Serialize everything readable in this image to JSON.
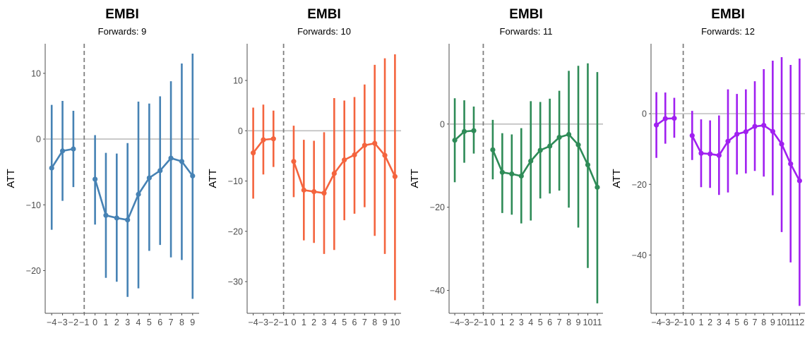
{
  "chart_data": [
    {
      "type": "line",
      "title": "EMBI",
      "subtitle": "Forwards: 9",
      "ylabel": "ATT",
      "xlabel": "",
      "color": "#4682b4",
      "ylim": [
        -26.5,
        14.5
      ],
      "yticks": [
        10,
        0,
        -10,
        -20
      ],
      "ytick_labels": [
        "10",
        "0",
        "−10",
        "−20"
      ],
      "xlim": [
        -4.6,
        9.6
      ],
      "xticks": [
        -4,
        -3,
        -2,
        -1,
        0,
        1,
        2,
        3,
        4,
        5,
        6,
        7,
        8,
        9
      ],
      "xtick_labels": [
        "−4",
        "−3",
        "−2",
        "−1",
        "0",
        "1",
        "2",
        "3",
        "4",
        "5",
        "6",
        "7",
        "8",
        "9"
      ],
      "pre": {
        "x": [
          -4,
          -3,
          -2
        ],
        "y": [
          -4.4,
          -1.8,
          -1.5
        ],
        "lo": [
          -13.8,
          -9.4,
          -7.3
        ],
        "hi": [
          5.2,
          5.8,
          4.3
        ]
      },
      "post": {
        "x": [
          0,
          1,
          2,
          3,
          4,
          5,
          6,
          7,
          8,
          9
        ],
        "y": [
          -6.1,
          -11.6,
          -12.0,
          -12.3,
          -8.4,
          -5.9,
          -4.8,
          -2.9,
          -3.4,
          -5.6
        ],
        "lo": [
          -13.0,
          -21.1,
          -21.7,
          -24.0,
          -22.7,
          -17.0,
          -16.1,
          -18.0,
          -18.4,
          -24.3
        ],
        "hi": [
          0.6,
          -2.1,
          -2.2,
          -0.6,
          5.7,
          5.4,
          6.5,
          8.8,
          11.5,
          13.0
        ]
      }
    },
    {
      "type": "line",
      "title": "EMBI",
      "subtitle": "Forwards: 10",
      "ylabel": "ATT",
      "xlabel": "",
      "color": "#f4643e",
      "ylim": [
        -36.3,
        17.3
      ],
      "yticks": [
        10,
        0,
        -10,
        -20,
        -30
      ],
      "ytick_labels": [
        "10",
        "0",
        "−10",
        "−20",
        "−30"
      ],
      "xlim": [
        -4.6,
        10.6
      ],
      "xticks": [
        -4,
        -3,
        -2,
        -1,
        0,
        1,
        2,
        3,
        4,
        5,
        6,
        7,
        8,
        9,
        10
      ],
      "xtick_labels": [
        "−4",
        "−3",
        "−2",
        "−1",
        "0",
        "1",
        "2",
        "3",
        "4",
        "5",
        "6",
        "7",
        "8",
        "9",
        "10"
      ],
      "pre": {
        "x": [
          -4,
          -3,
          -2
        ],
        "y": [
          -4.4,
          -1.8,
          -1.6
        ],
        "lo": [
          -13.5,
          -8.7,
          -7.2
        ],
        "hi": [
          4.6,
          5.2,
          4.0
        ]
      },
      "post": {
        "x": [
          0,
          1,
          2,
          3,
          4,
          5,
          6,
          7,
          8,
          9,
          10
        ],
        "y": [
          -6.1,
          -11.8,
          -12.1,
          -12.4,
          -8.5,
          -5.8,
          -4.8,
          -2.9,
          -2.5,
          -4.9,
          -9.1
        ],
        "lo": [
          -13.2,
          -21.8,
          -22.3,
          -24.5,
          -23.7,
          -17.8,
          -16.5,
          -15.2,
          -20.9,
          -24.5,
          -33.7
        ],
        "hi": [
          1.0,
          -1.8,
          -2.0,
          -0.3,
          6.5,
          6.0,
          6.7,
          9.2,
          13.1,
          14.4,
          15.2
        ]
      }
    },
    {
      "type": "line",
      "title": "EMBI",
      "subtitle": "Forwards: 11",
      "ylabel": "ATT",
      "xlabel": "",
      "color": "#2e8b57",
      "ylim": [
        -45.5,
        19.3
      ],
      "yticks": [
        0,
        -20,
        -40
      ],
      "ytick_labels": [
        "0",
        "−20",
        "−40"
      ],
      "xlim": [
        -4.6,
        11.6
      ],
      "xticks": [
        -4,
        -3,
        -2,
        -1,
        0,
        1,
        2,
        3,
        4,
        5,
        6,
        7,
        8,
        9,
        10,
        11
      ],
      "xtick_labels": [
        "−4",
        "−3",
        "−2",
        "−1",
        "0",
        "1",
        "2",
        "3",
        "4",
        "5",
        "6",
        "7",
        "8",
        "9",
        "10",
        "11"
      ],
      "pre": {
        "x": [
          -4,
          -3,
          -2
        ],
        "y": [
          -3.9,
          -1.8,
          -1.6
        ],
        "lo": [
          -14.0,
          -9.3,
          -7.1
        ],
        "hi": [
          6.2,
          5.7,
          4.2
        ]
      },
      "post": {
        "x": [
          0,
          1,
          2,
          3,
          4,
          5,
          6,
          7,
          8,
          9,
          10,
          11
        ],
        "y": [
          -6.2,
          -11.6,
          -12.0,
          -12.5,
          -8.9,
          -6.3,
          -5.3,
          -3.2,
          -2.5,
          -5.0,
          -9.8,
          -15.2
        ],
        "lo": [
          -13.3,
          -21.4,
          -21.8,
          -23.9,
          -23.2,
          -17.9,
          -16.7,
          -16.0,
          -20.1,
          -24.9,
          -34.6,
          -43.1
        ],
        "hi": [
          1.0,
          -2.2,
          -2.5,
          -1.0,
          5.5,
          5.3,
          6.1,
          8.0,
          12.8,
          14.0,
          14.6,
          12.5
        ]
      }
    },
    {
      "type": "line",
      "title": "EMBI",
      "subtitle": "Forwards: 12",
      "ylabel": "ATT",
      "xlabel": "",
      "color": "#a020f0",
      "ylim": [
        -56.5,
        19.8
      ],
      "yticks": [
        0,
        -20,
        -40
      ],
      "ytick_labels": [
        "0",
        "−20",
        "−40"
      ],
      "xlim": [
        -4.6,
        12.6
      ],
      "xticks": [
        -4,
        -3,
        -2,
        -1,
        0,
        1,
        2,
        3,
        4,
        5,
        6,
        7,
        8,
        9,
        10,
        11,
        12
      ],
      "xtick_labels": [
        "−4",
        "−3",
        "−2",
        "−1",
        "0",
        "1",
        "2",
        "3",
        "4",
        "5",
        "6",
        "7",
        "8",
        "9",
        "10",
        "11",
        "12"
      ],
      "pre": {
        "x": [
          -4,
          -3,
          -2
        ],
        "y": [
          -3.2,
          -1.4,
          -1.3
        ],
        "lo": [
          -12.5,
          -8.5,
          -6.8
        ],
        "hi": [
          6.1,
          6.0,
          4.5
        ]
      },
      "post": {
        "x": [
          0,
          1,
          2,
          3,
          4,
          5,
          6,
          7,
          8,
          9,
          10,
          11,
          12
        ],
        "y": [
          -6.2,
          -11.2,
          -11.4,
          -11.8,
          -7.8,
          -5.8,
          -5.1,
          -3.6,
          -3.3,
          -5.0,
          -8.6,
          -14.2,
          -19.0
        ],
        "lo": [
          -13.1,
          -20.8,
          -21.0,
          -23.0,
          -22.3,
          -17.2,
          -16.9,
          -16.2,
          -17.8,
          -23.1,
          -33.5,
          -42.1,
          -54.4
        ],
        "hi": [
          0.8,
          -1.6,
          -1.9,
          -0.5,
          6.9,
          5.6,
          6.9,
          9.2,
          12.6,
          15.0,
          16.0,
          13.8,
          15.6
        ]
      }
    }
  ]
}
